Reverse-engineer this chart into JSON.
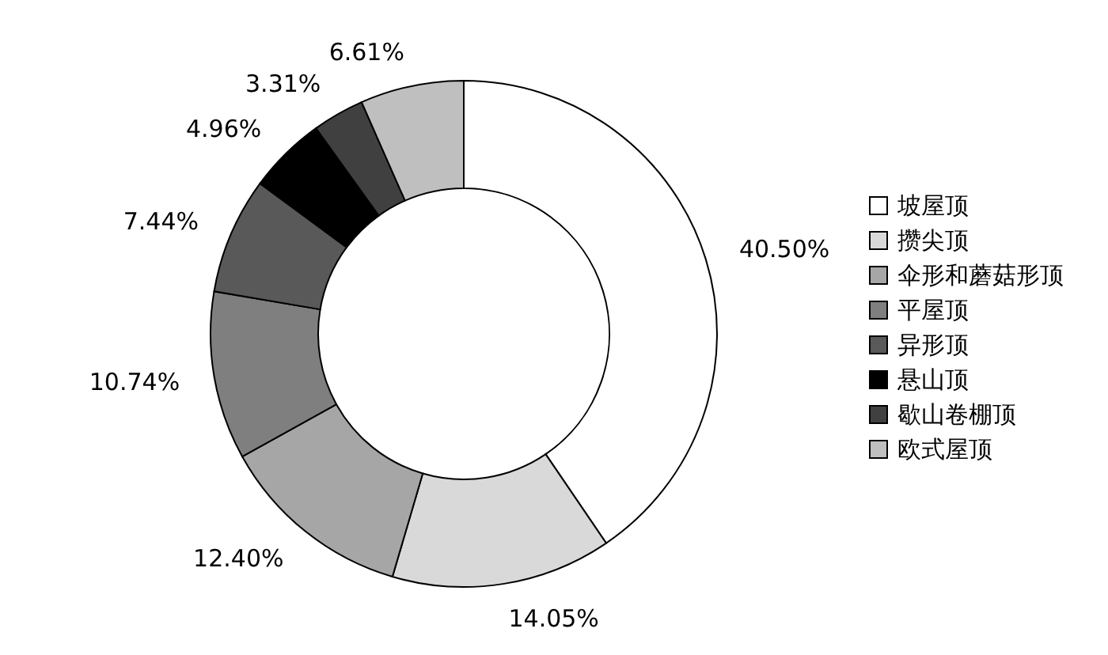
{
  "chart_data": {
    "type": "donut",
    "categories": [
      "坡屋顶",
      "攒尖顶",
      "伞形和蘑菇形顶",
      "平屋顶",
      "异形顶",
      "悬山顶",
      "歇山卷棚顶",
      "欧式屋顶"
    ],
    "values": [
      40.5,
      14.05,
      12.4,
      10.74,
      7.44,
      4.96,
      3.31,
      6.61
    ],
    "value_labels": [
      "40.50%",
      "14.05%",
      "12.40%",
      "10.74%",
      "7.44%",
      "4.96%",
      "3.31%",
      "6.61%"
    ],
    "colors": [
      "#ffffff",
      "#d9d9d9",
      "#a6a6a6",
      "#7f7f7f",
      "#595959",
      "#000000",
      "#404040",
      "#bfbfbf"
    ],
    "legend": "right"
  }
}
